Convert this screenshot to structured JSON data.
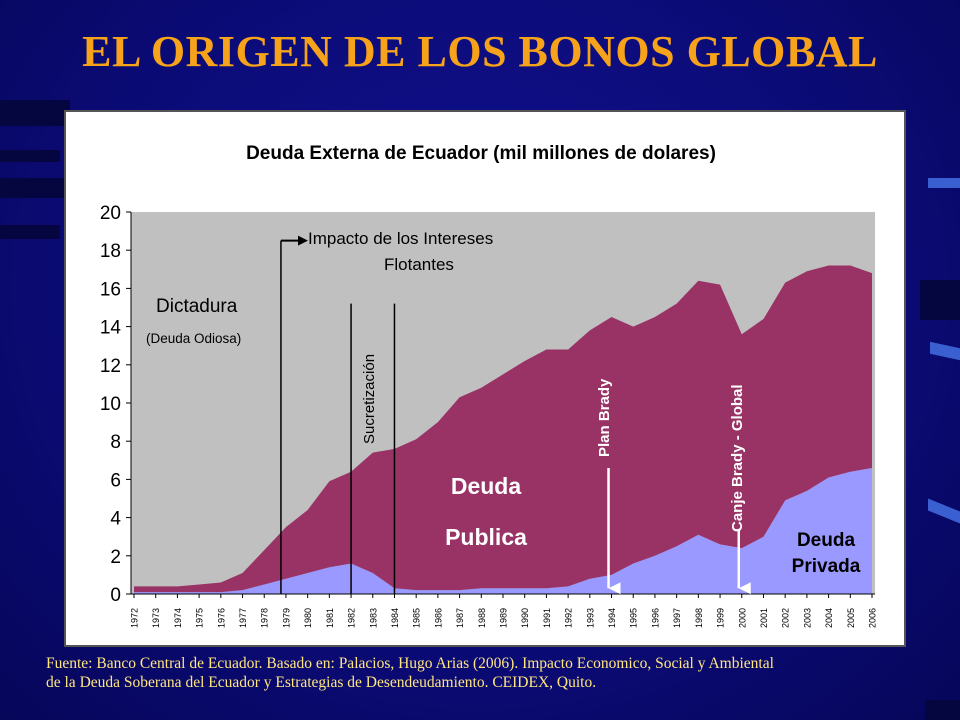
{
  "slide": {
    "title": "EL ORIGEN DE LOS BONOS GLOBAL",
    "source_line1": "Fuente: Banco Central de Ecuador. Basado en: Palacios, Hugo Arias (2006). Impacto Economico, Social y Ambiental",
    "source_line2": "de la Deuda Soberana del Ecuador y Estrategias de Desendeudamiento. CEIDEX, Quito."
  },
  "chart_data": {
    "type": "area",
    "title": "Deuda Externa de Ecuador (mil millones de dolares)",
    "xlabel": "",
    "ylabel": "",
    "ylim": [
      0,
      20
    ],
    "yticks": [
      0,
      2,
      4,
      6,
      8,
      10,
      12,
      14,
      16,
      18,
      20
    ],
    "x": [
      "1972",
      "1973",
      "1974",
      "1975",
      "1976",
      "1977",
      "1978",
      "1979",
      "1980",
      "1981",
      "1982",
      "1983",
      "1984",
      "1985",
      "1986",
      "1987",
      "1988",
      "1989",
      "1990",
      "1991",
      "1992",
      "1993",
      "1994",
      "1995",
      "1996",
      "1997",
      "1998",
      "1999",
      "2000",
      "2001",
      "2002",
      "2003",
      "2004",
      "2005",
      "2006"
    ],
    "stacked": true,
    "grid": false,
    "series": [
      {
        "name": "Deuda Privada",
        "color": "#9999ff",
        "values": [
          0.1,
          0.1,
          0.1,
          0.1,
          0.1,
          0.2,
          0.5,
          0.8,
          1.1,
          1.4,
          1.6,
          1.1,
          0.3,
          0.2,
          0.2,
          0.2,
          0.3,
          0.3,
          0.3,
          0.3,
          0.4,
          0.8,
          1.0,
          1.6,
          2.0,
          2.5,
          3.1,
          2.6,
          2.4,
          3.0,
          4.9,
          5.4,
          6.1,
          6.4,
          6.6
        ]
      },
      {
        "name": "Deuda Publica",
        "color": "#993366",
        "values": [
          0.3,
          0.3,
          0.3,
          0.4,
          0.5,
          0.9,
          1.8,
          2.7,
          3.3,
          4.5,
          4.8,
          6.3,
          7.3,
          7.9,
          8.8,
          10.1,
          10.5,
          11.2,
          11.9,
          12.5,
          12.4,
          13.0,
          13.5,
          12.4,
          12.5,
          12.7,
          13.3,
          13.6,
          11.2,
          11.4,
          11.4,
          11.5,
          11.1,
          10.8,
          10.2
        ]
      }
    ],
    "annotations": {
      "dictadura": "Dictadura",
      "deuda_odiosa": "(Deuda Odiosa)",
      "impacto_line1": "Impacto de los Intereses",
      "impacto_line2": "Flotantes",
      "sucretizacion": "Sucretización",
      "plan_brady": "Plan Brady",
      "canje": "Canje Brady - Global",
      "publica_line1": "Deuda",
      "publica_line2": "Publica",
      "privada_line1": "Deuda",
      "privada_line2": "Privada"
    }
  }
}
